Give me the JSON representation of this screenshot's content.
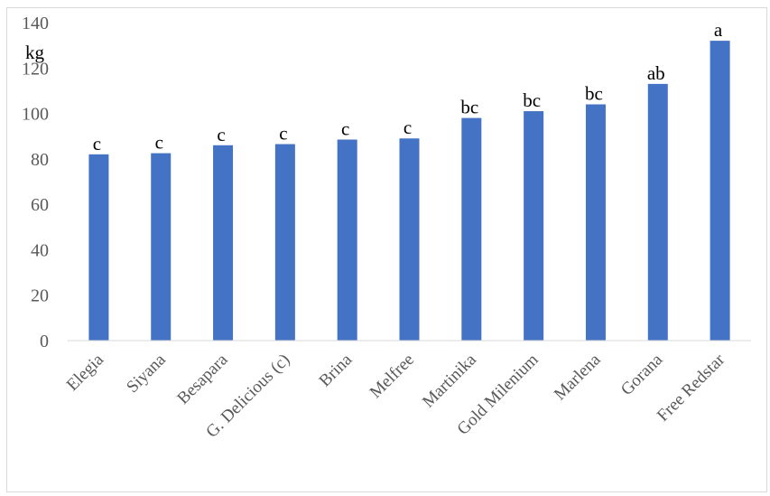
{
  "chart_data": {
    "type": "bar",
    "title": "",
    "xlabel": "",
    "ylabel": "kg",
    "ylim": [
      0,
      140
    ],
    "yticks": [
      0,
      20,
      40,
      60,
      80,
      100,
      120,
      140
    ],
    "grid": false,
    "legend": "none",
    "bar_color": "#4472c4",
    "categories": [
      "Elegia",
      "Siyana",
      "Besapara",
      "G. Delicious (c)",
      "Brina",
      "Melfree",
      "Martinika",
      "Gold Milenium",
      "Marlena",
      "Gorana",
      "Free Redstar"
    ],
    "values": [
      82,
      82.5,
      86,
      86.5,
      88.5,
      89,
      98,
      101,
      104,
      113,
      132
    ],
    "data_labels": [
      "c",
      "c",
      "c",
      "c",
      "c",
      "c",
      "bc",
      "bc",
      "bc",
      "ab",
      "a"
    ]
  }
}
